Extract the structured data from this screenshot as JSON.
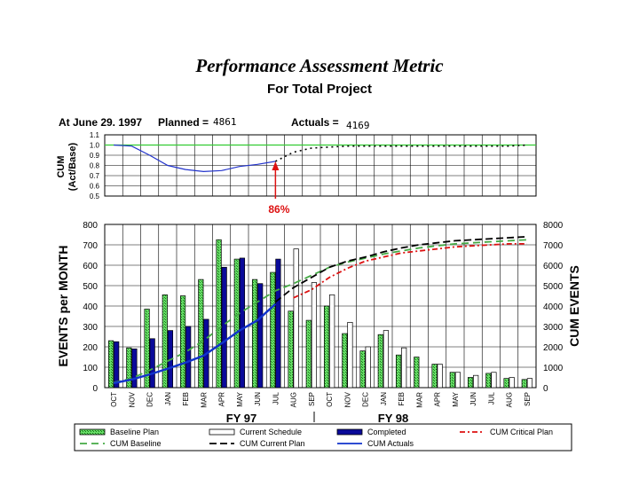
{
  "page": {
    "title": "Performance Assessment Metric",
    "subtitle": "For Total Project"
  },
  "chart_data": {
    "type": "bar",
    "status": {
      "date_label": "At June 29. 1997",
      "planned_label": "Planned =",
      "planned_value": "4861",
      "actuals_label": "Actuals =",
      "actuals_value": "4169"
    },
    "months": [
      "OCT",
      "NOV",
      "DEC",
      "JAN",
      "FEB",
      "MAR",
      "APR",
      "MAY",
      "JUN",
      "JUL",
      "AUG",
      "SEP",
      "OCT",
      "NOV",
      "DEC",
      "JAN",
      "FEB",
      "MAR",
      "APR",
      "MAY",
      "JUN",
      "JUL",
      "AUG",
      "SEP"
    ],
    "fiscal_years": [
      "FY 97",
      "FY 98"
    ],
    "ratio_chart": {
      "ylabel": "CUM\n(Act/Base)",
      "ylim": [
        0.5,
        1.1
      ],
      "yticks": [
        "0.5",
        "0.6",
        "0.7",
        "0.8",
        "0.9",
        "1.0",
        "1.1"
      ],
      "actual": [
        1.0,
        0.99,
        0.9,
        0.8,
        0.76,
        0.74,
        0.75,
        0.79,
        0.81,
        0.84,
        null,
        null,
        null,
        null,
        null,
        null,
        null,
        null,
        null,
        null,
        null,
        null,
        null,
        null
      ],
      "projection": [
        null,
        null,
        null,
        null,
        null,
        null,
        null,
        null,
        null,
        0.84,
        0.93,
        0.97,
        0.98,
        0.99,
        0.99,
        0.99,
        0.99,
        0.99,
        0.99,
        0.99,
        0.99,
        0.99,
        0.99,
        1.0
      ],
      "reference": 1.0,
      "callout": "86%"
    },
    "main_chart": {
      "ylabel_left": "EVENTS per MONTH",
      "ylabel_right": "CUM EVENTS",
      "ylim_left": [
        0,
        800
      ],
      "ylim_right": [
        0,
        8000
      ],
      "yticks_left": [
        "0",
        "100",
        "200",
        "300",
        "400",
        "500",
        "600",
        "700",
        "800"
      ],
      "yticks_right": [
        "0",
        "1000",
        "2000",
        "3000",
        "4000",
        "5000",
        "6000",
        "7000",
        "8000"
      ],
      "series": [
        {
          "name": "Baseline Plan",
          "kind": "bar",
          "color": "#66dd66",
          "values": [
            230,
            195,
            385,
            455,
            450,
            530,
            725,
            630,
            530,
            565,
            375,
            330,
            400,
            265,
            180,
            260,
            160,
            150,
            115,
            75,
            50,
            70,
            45,
            40
          ]
        },
        {
          "name": "Current Schedule",
          "kind": "bar",
          "color": "#ffffff",
          "values": [
            null,
            null,
            null,
            null,
            null,
            null,
            null,
            null,
            null,
            null,
            680,
            515,
            455,
            320,
            200,
            280,
            195,
            null,
            115,
            75,
            60,
            75,
            50,
            45
          ]
        },
        {
          "name": "Completed",
          "kind": "bar",
          "color": "#0a0a9a",
          "values": [
            225,
            190,
            240,
            280,
            300,
            335,
            590,
            635,
            510,
            630,
            null,
            null,
            null,
            null,
            null,
            null,
            null,
            null,
            null,
            null,
            null,
            null,
            null,
            null
          ]
        },
        {
          "name": "CUM Critical Plan",
          "kind": "line",
          "color": "#dd1111",
          "dash": "6,3,2,3",
          "values": [
            null,
            null,
            null,
            null,
            null,
            null,
            null,
            null,
            null,
            null,
            4400,
            4800,
            5400,
            5850,
            6200,
            6400,
            6600,
            6700,
            6800,
            6900,
            6950,
            7000,
            7050,
            7050
          ]
        },
        {
          "name": "CUM Baseline",
          "kind": "line",
          "color": "#44aa44",
          "dash": "8,5",
          "values": [
            250,
            450,
            850,
            1300,
            1750,
            2300,
            3000,
            3650,
            4200,
            4750,
            5100,
            5500,
            5900,
            6150,
            6350,
            6550,
            6700,
            6850,
            6950,
            7050,
            7100,
            7150,
            7200,
            7250
          ]
        },
        {
          "name": "CUM Current Plan",
          "kind": "line",
          "color": "#000000",
          "dash": "8,4",
          "values": [
            null,
            null,
            null,
            null,
            null,
            null,
            null,
            null,
            null,
            4200,
            4900,
            5400,
            5900,
            6200,
            6400,
            6650,
            6850,
            7000,
            7100,
            7200,
            7250,
            7300,
            7350,
            7400
          ]
        },
        {
          "name": "CUM Actuals",
          "kind": "line",
          "color": "#1133cc",
          "dash": "",
          "values": [
            220,
            400,
            650,
            930,
            1230,
            1570,
            2170,
            2800,
            3300,
            4100,
            null,
            null,
            null,
            null,
            null,
            null,
            null,
            null,
            null,
            null,
            null,
            null,
            null,
            null
          ]
        }
      ]
    }
  }
}
